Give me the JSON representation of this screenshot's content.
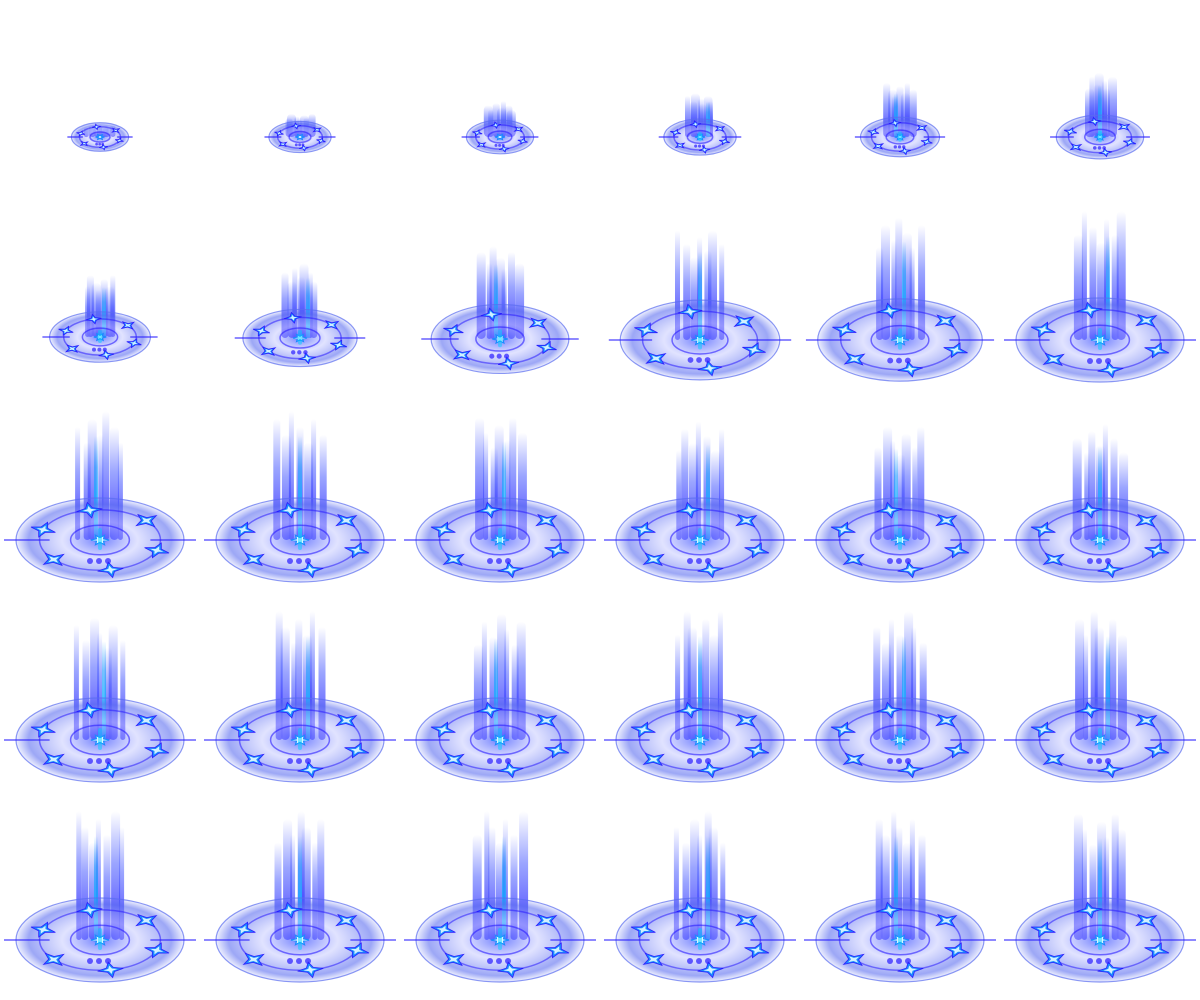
{
  "sprite_sheet": {
    "columns": 6,
    "rows": 5,
    "colors": {
      "beam_deep": "#2a1cff",
      "beam_mid": "#4a5cff",
      "beam_bright": "#1e9bff",
      "core": "#00d0ff",
      "ring": "#5a6cf0",
      "disc_fill": "#c8ccff",
      "star": "#1a8cff",
      "star_highlight": "#e6fbff",
      "background": "#ffffff"
    },
    "frames": [
      {
        "scale": 0.34,
        "beam": 0.1
      },
      {
        "scale": 0.37,
        "beam": 0.18
      },
      {
        "scale": 0.4,
        "beam": 0.28
      },
      {
        "scale": 0.43,
        "beam": 0.34
      },
      {
        "scale": 0.47,
        "beam": 0.42
      },
      {
        "scale": 0.52,
        "beam": 0.5
      },
      {
        "scale": 0.6,
        "beam": 0.48
      },
      {
        "scale": 0.68,
        "beam": 0.58
      },
      {
        "scale": 0.82,
        "beam": 0.72
      },
      {
        "scale": 0.95,
        "beam": 0.85
      },
      {
        "scale": 0.98,
        "beam": 0.95
      },
      {
        "scale": 1.0,
        "beam": 1.0
      },
      {
        "scale": 1.0,
        "beam": 1.0
      },
      {
        "scale": 1.0,
        "beam": 1.0
      },
      {
        "scale": 1.0,
        "beam": 0.95
      },
      {
        "scale": 1.0,
        "beam": 0.92
      },
      {
        "scale": 1.0,
        "beam": 0.88
      },
      {
        "scale": 1.0,
        "beam": 0.9
      },
      {
        "scale": 1.0,
        "beam": 0.95
      },
      {
        "scale": 1.0,
        "beam": 1.0
      },
      {
        "scale": 1.0,
        "beam": 0.98
      },
      {
        "scale": 1.0,
        "beam": 1.0
      },
      {
        "scale": 1.0,
        "beam": 1.0
      },
      {
        "scale": 1.0,
        "beam": 1.0
      },
      {
        "scale": 1.0,
        "beam": 1.0
      },
      {
        "scale": 1.0,
        "beam": 1.0
      },
      {
        "scale": 1.0,
        "beam": 1.0
      },
      {
        "scale": 1.0,
        "beam": 1.0
      },
      {
        "scale": 1.0,
        "beam": 1.0
      },
      {
        "scale": 1.0,
        "beam": 0.98
      }
    ]
  }
}
